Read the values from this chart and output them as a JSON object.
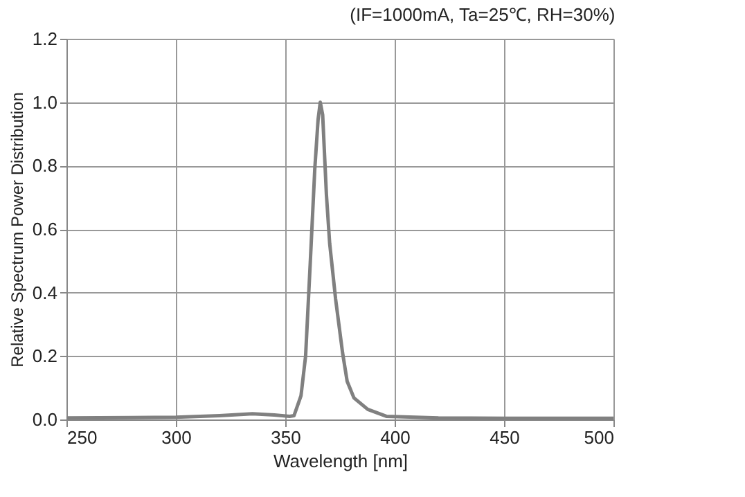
{
  "chart_data": {
    "type": "line",
    "subtitle": "(IF=1000mA, Ta=25℃, RH=30%)",
    "xlabel": "Wavelength [nm]",
    "ylabel": "Relative Spectrum Power Distribution",
    "x": [
      250,
      280,
      300,
      320,
      335,
      345,
      352,
      354,
      357.2,
      359.3,
      361.4,
      363.5,
      365,
      366,
      367.1,
      368.8,
      370.3,
      373,
      376.2,
      378.3,
      381.4,
      387.7,
      396.2,
      420,
      450,
      500
    ],
    "series": [
      {
        "color": "#808080",
        "values": [
          0.005,
          0.006,
          0.007,
          0.012,
          0.018,
          0.014,
          0.01,
          0.012,
          0.075,
          0.2,
          0.49,
          0.79,
          0.945,
          1.0,
          0.96,
          0.71,
          0.555,
          0.38,
          0.21,
          0.12,
          0.068,
          0.032,
          0.01,
          0.005,
          0.004,
          0.004
        ]
      }
    ],
    "xlim": [
      250,
      500
    ],
    "xticks": [
      250,
      300,
      350,
      400,
      450,
      500
    ],
    "ylim": [
      0,
      1.2
    ],
    "yticks": [
      {
        "value": 0,
        "label": "0.0"
      },
      0.2,
      0.4,
      0.6,
      0.8,
      {
        "value": 1,
        "label": "1.0"
      },
      1.2
    ],
    "grid": true,
    "legend": false,
    "marker": "none",
    "line_style": "solid"
  }
}
